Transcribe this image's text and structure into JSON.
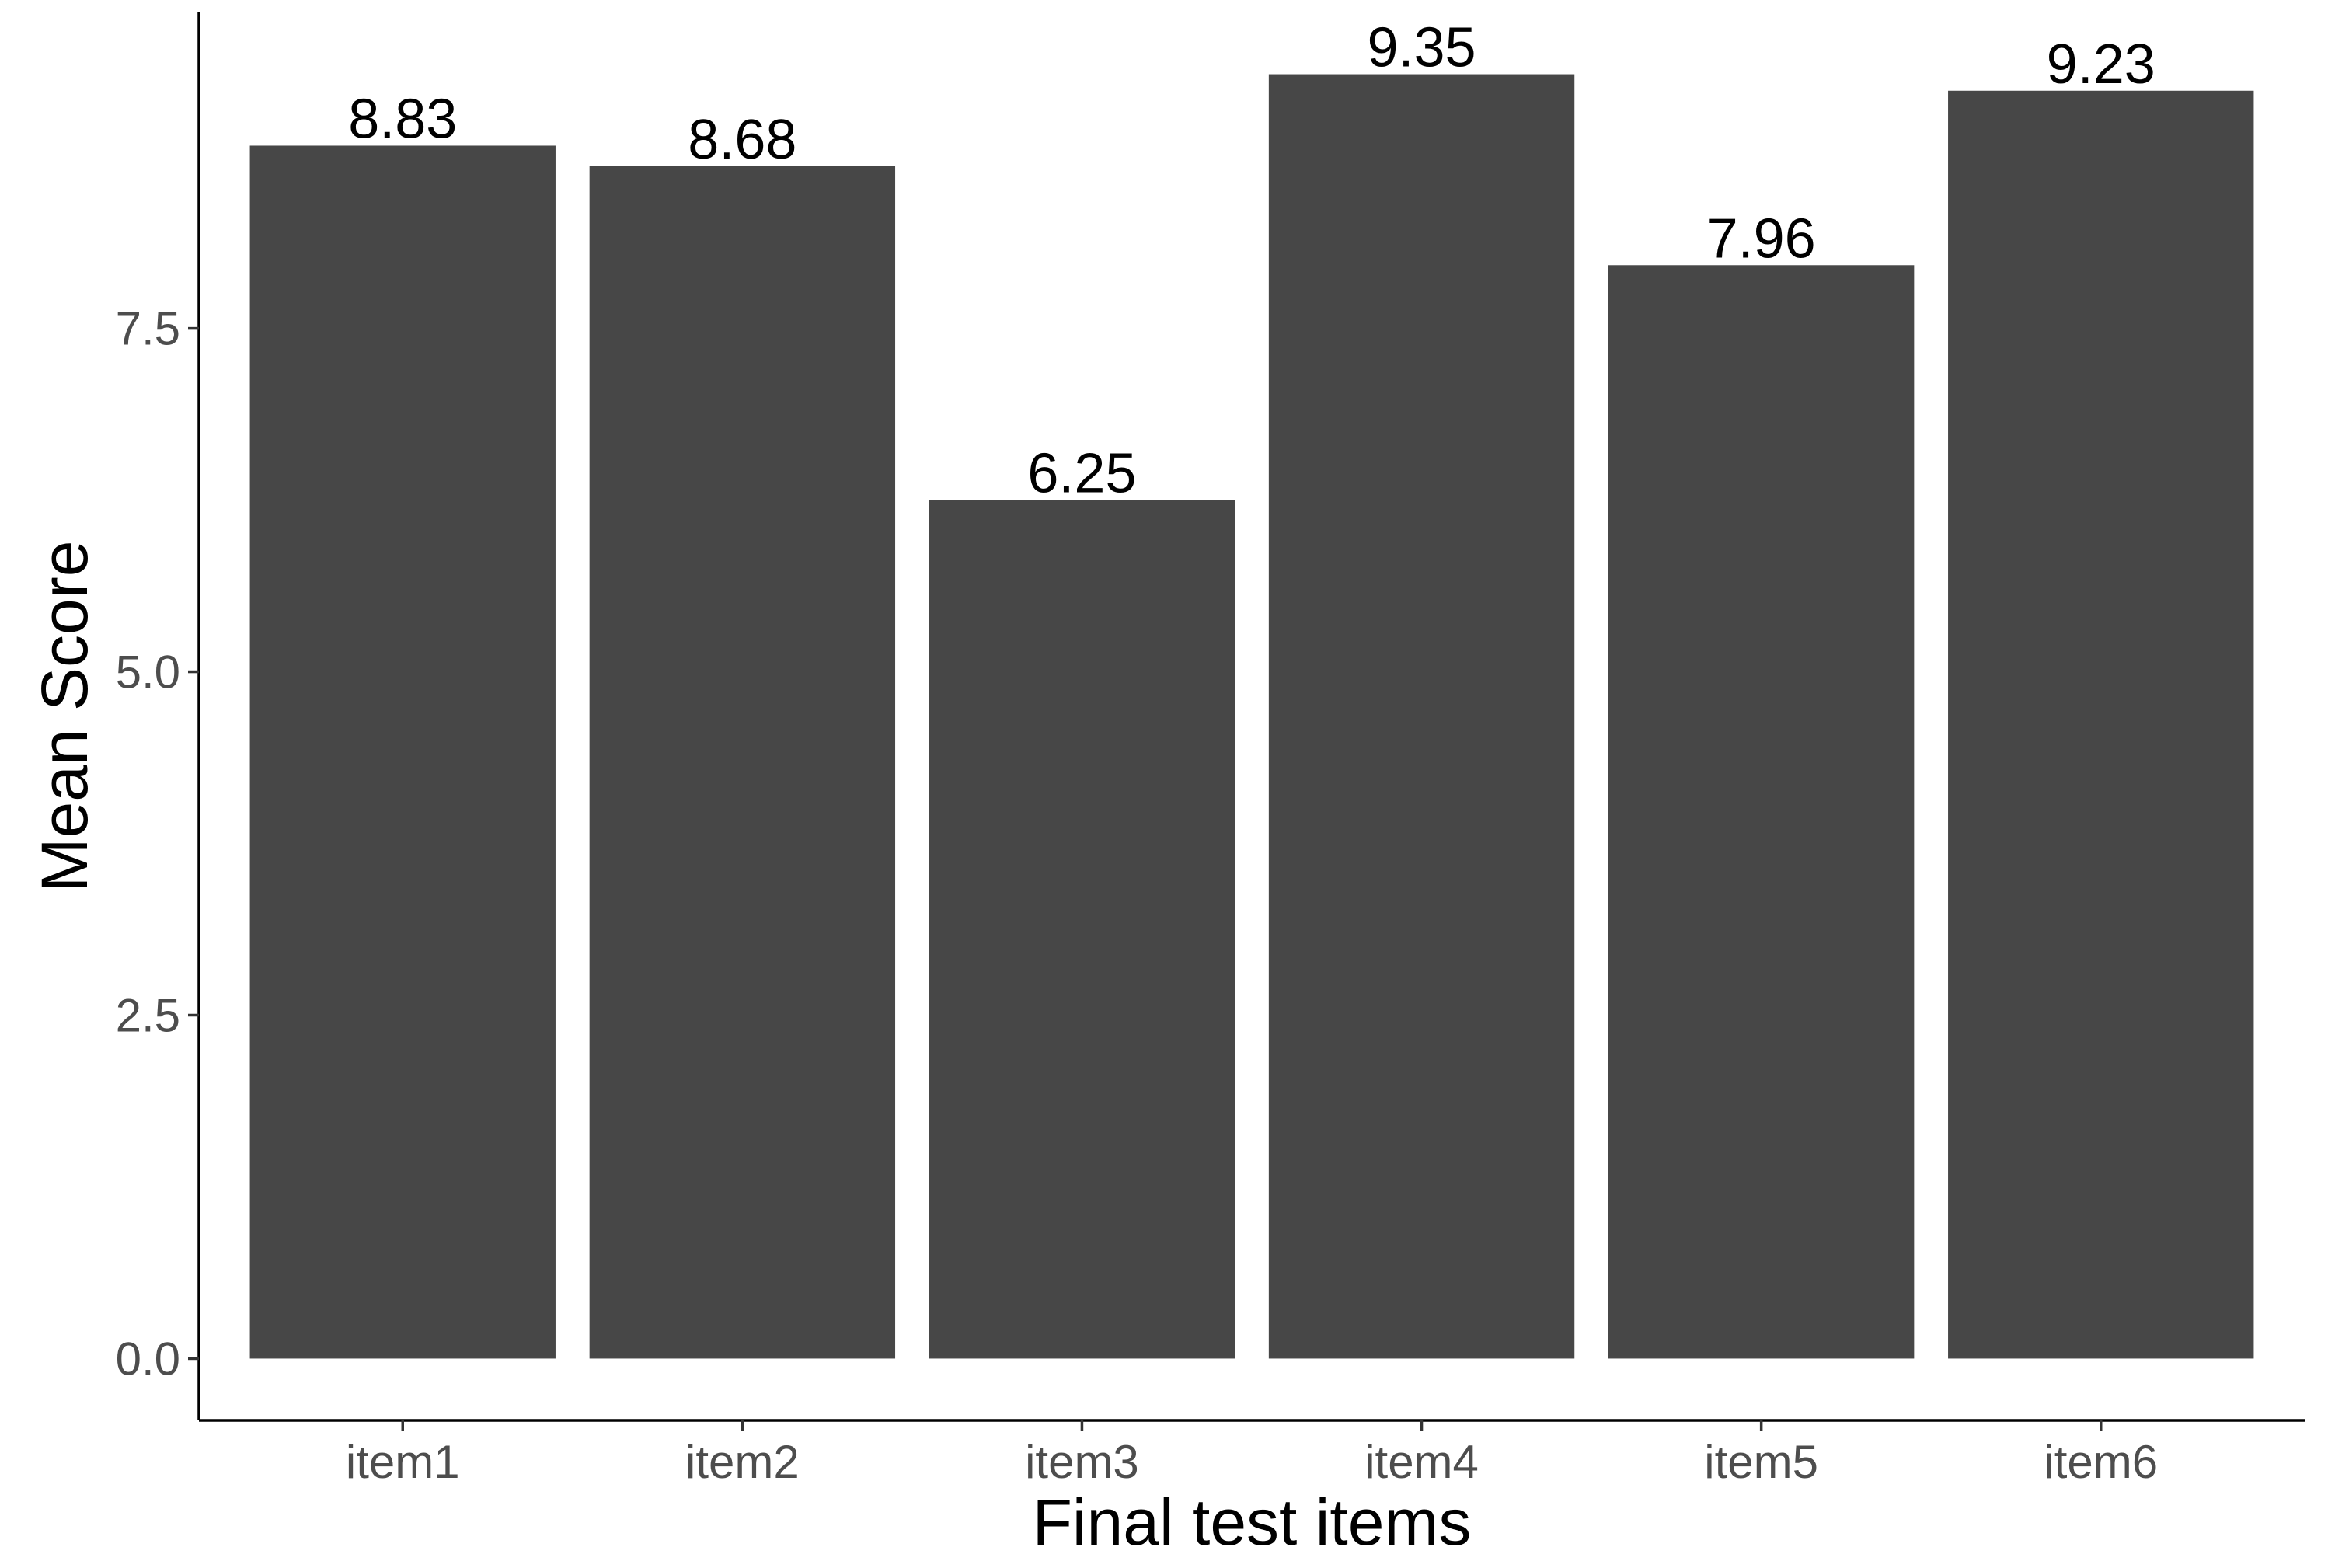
{
  "chart_data": {
    "type": "bar",
    "categories": [
      "item1",
      "item2",
      "item3",
      "item4",
      "item5",
      "item6"
    ],
    "values": [
      8.83,
      8.68,
      6.25,
      9.35,
      7.96,
      9.23
    ],
    "data_labels": [
      "8.83",
      "8.68",
      "6.25",
      "9.35",
      "7.96",
      "9.23"
    ],
    "xlabel": "Final test items",
    "ylabel": "Mean Score",
    "ylim": [
      -0.45,
      9.8
    ],
    "yticks": [
      0.0,
      2.5,
      5.0,
      7.5
    ],
    "ytick_labels": [
      "0.0",
      "2.5",
      "5.0",
      "7.5"
    ],
    "bar_color": "#474747",
    "grid": false,
    "legend": "none"
  }
}
